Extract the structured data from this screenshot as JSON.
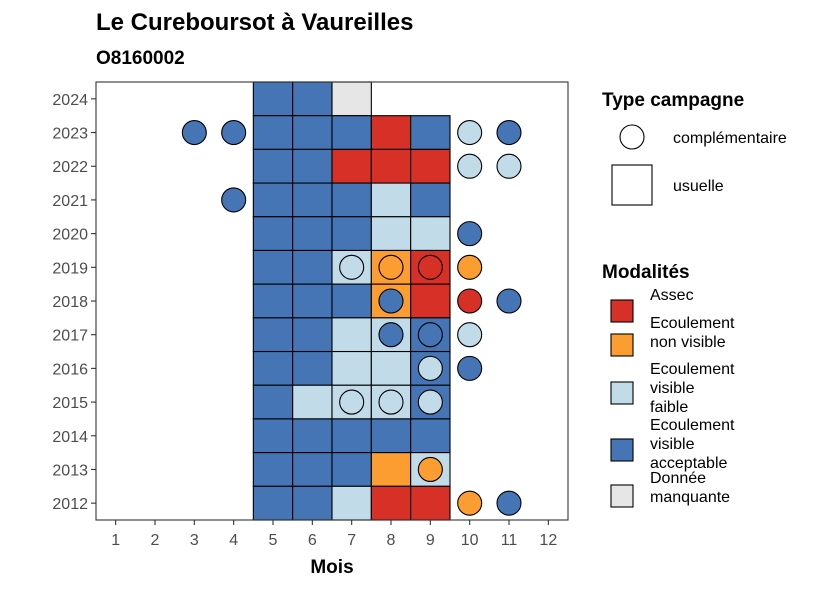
{
  "chart_data": {
    "type": "heatmap",
    "title": "Le Cureboursot à Vaureilles",
    "subtitle": "O8160002",
    "xlabel": "Mois",
    "ylabel": "",
    "x_ticks": [
      1,
      2,
      3,
      4,
      5,
      6,
      7,
      8,
      9,
      10,
      11,
      12
    ],
    "y_ticks": [
      2012,
      2013,
      2014,
      2015,
      2016,
      2017,
      2018,
      2019,
      2020,
      2021,
      2022,
      2023,
      2024
    ],
    "xlim": [
      0.5,
      12.5
    ],
    "ylim": [
      2011.5,
      2024.5
    ],
    "modalities": [
      {
        "key": "assec",
        "label_lines": [
          "Assec"
        ],
        "color": "#d73027"
      },
      {
        "key": "nonvisible",
        "label_lines": [
          "Ecoulement",
          "non visible"
        ],
        "color": "#fc9d32"
      },
      {
        "key": "faible",
        "label_lines": [
          "Ecoulement",
          "visible",
          "faible"
        ],
        "color": "#c2dbe9"
      },
      {
        "key": "acceptable",
        "label_lines": [
          "Ecoulement",
          "visible",
          "acceptable"
        ],
        "color": "#4575b4"
      },
      {
        "key": "manquante",
        "label_lines": [
          "Donnée",
          "manquante"
        ],
        "color": "#e6e6e6"
      }
    ],
    "campaign_types": [
      {
        "key": "complementaire",
        "label": "complémentaire",
        "shape": "circle"
      },
      {
        "key": "usuelle",
        "label": "usuelle",
        "shape": "square"
      }
    ],
    "legend_titles": {
      "campaign": "Type campagne",
      "modality": "Modalités"
    },
    "usuelle": [
      {
        "year": 2024,
        "month": 5,
        "mod": "acceptable"
      },
      {
        "year": 2024,
        "month": 6,
        "mod": "acceptable"
      },
      {
        "year": 2024,
        "month": 7,
        "mod": "manquante"
      },
      {
        "year": 2023,
        "month": 5,
        "mod": "acceptable"
      },
      {
        "year": 2023,
        "month": 6,
        "mod": "acceptable"
      },
      {
        "year": 2023,
        "month": 7,
        "mod": "acceptable"
      },
      {
        "year": 2023,
        "month": 8,
        "mod": "assec"
      },
      {
        "year": 2023,
        "month": 9,
        "mod": "acceptable"
      },
      {
        "year": 2022,
        "month": 5,
        "mod": "acceptable"
      },
      {
        "year": 2022,
        "month": 6,
        "mod": "acceptable"
      },
      {
        "year": 2022,
        "month": 7,
        "mod": "assec"
      },
      {
        "year": 2022,
        "month": 8,
        "mod": "assec"
      },
      {
        "year": 2022,
        "month": 9,
        "mod": "assec"
      },
      {
        "year": 2021,
        "month": 5,
        "mod": "acceptable"
      },
      {
        "year": 2021,
        "month": 6,
        "mod": "acceptable"
      },
      {
        "year": 2021,
        "month": 7,
        "mod": "acceptable"
      },
      {
        "year": 2021,
        "month": 8,
        "mod": "faible"
      },
      {
        "year": 2021,
        "month": 9,
        "mod": "acceptable"
      },
      {
        "year": 2020,
        "month": 5,
        "mod": "acceptable"
      },
      {
        "year": 2020,
        "month": 6,
        "mod": "acceptable"
      },
      {
        "year": 2020,
        "month": 7,
        "mod": "acceptable"
      },
      {
        "year": 2020,
        "month": 8,
        "mod": "faible"
      },
      {
        "year": 2020,
        "month": 9,
        "mod": "faible"
      },
      {
        "year": 2019,
        "month": 5,
        "mod": "acceptable"
      },
      {
        "year": 2019,
        "month": 6,
        "mod": "acceptable"
      },
      {
        "year": 2019,
        "month": 7,
        "mod": "faible"
      },
      {
        "year": 2019,
        "month": 8,
        "mod": "nonvisible"
      },
      {
        "year": 2019,
        "month": 9,
        "mod": "assec"
      },
      {
        "year": 2018,
        "month": 5,
        "mod": "acceptable"
      },
      {
        "year": 2018,
        "month": 6,
        "mod": "acceptable"
      },
      {
        "year": 2018,
        "month": 7,
        "mod": "acceptable"
      },
      {
        "year": 2018,
        "month": 8,
        "mod": "nonvisible"
      },
      {
        "year": 2018,
        "month": 9,
        "mod": "assec"
      },
      {
        "year": 2017,
        "month": 5,
        "mod": "acceptable"
      },
      {
        "year": 2017,
        "month": 6,
        "mod": "acceptable"
      },
      {
        "year": 2017,
        "month": 7,
        "mod": "faible"
      },
      {
        "year": 2017,
        "month": 8,
        "mod": "faible"
      },
      {
        "year": 2017,
        "month": 9,
        "mod": "acceptable"
      },
      {
        "year": 2016,
        "month": 5,
        "mod": "acceptable"
      },
      {
        "year": 2016,
        "month": 6,
        "mod": "acceptable"
      },
      {
        "year": 2016,
        "month": 7,
        "mod": "faible"
      },
      {
        "year": 2016,
        "month": 8,
        "mod": "faible"
      },
      {
        "year": 2016,
        "month": 9,
        "mod": "acceptable"
      },
      {
        "year": 2015,
        "month": 5,
        "mod": "acceptable"
      },
      {
        "year": 2015,
        "month": 6,
        "mod": "faible"
      },
      {
        "year": 2015,
        "month": 7,
        "mod": "faible"
      },
      {
        "year": 2015,
        "month": 8,
        "mod": "faible"
      },
      {
        "year": 2015,
        "month": 9,
        "mod": "acceptable"
      },
      {
        "year": 2014,
        "month": 5,
        "mod": "acceptable"
      },
      {
        "year": 2014,
        "month": 6,
        "mod": "acceptable"
      },
      {
        "year": 2014,
        "month": 7,
        "mod": "acceptable"
      },
      {
        "year": 2014,
        "month": 8,
        "mod": "acceptable"
      },
      {
        "year": 2014,
        "month": 9,
        "mod": "acceptable"
      },
      {
        "year": 2013,
        "month": 5,
        "mod": "acceptable"
      },
      {
        "year": 2013,
        "month": 6,
        "mod": "acceptable"
      },
      {
        "year": 2013,
        "month": 7,
        "mod": "acceptable"
      },
      {
        "year": 2013,
        "month": 8,
        "mod": "nonvisible"
      },
      {
        "year": 2013,
        "month": 9,
        "mod": "faible"
      },
      {
        "year": 2012,
        "month": 5,
        "mod": "acceptable"
      },
      {
        "year": 2012,
        "month": 6,
        "mod": "acceptable"
      },
      {
        "year": 2012,
        "month": 7,
        "mod": "faible"
      },
      {
        "year": 2012,
        "month": 8,
        "mod": "assec"
      },
      {
        "year": 2012,
        "month": 9,
        "mod": "assec"
      }
    ],
    "complementaire": [
      {
        "year": 2023,
        "month": 3,
        "mod": "acceptable"
      },
      {
        "year": 2023,
        "month": 4,
        "mod": "acceptable"
      },
      {
        "year": 2023,
        "month": 10,
        "mod": "faible"
      },
      {
        "year": 2023,
        "month": 11,
        "mod": "acceptable"
      },
      {
        "year": 2022,
        "month": 10,
        "mod": "faible"
      },
      {
        "year": 2022,
        "month": 11,
        "mod": "faible"
      },
      {
        "year": 2021,
        "month": 4,
        "mod": "acceptable"
      },
      {
        "year": 2020,
        "month": 10,
        "mod": "acceptable"
      },
      {
        "year": 2019,
        "month": 7,
        "mod": "faible"
      },
      {
        "year": 2019,
        "month": 8,
        "mod": "nonvisible"
      },
      {
        "year": 2019,
        "month": 9,
        "mod": "assec"
      },
      {
        "year": 2019,
        "month": 10,
        "mod": "nonvisible"
      },
      {
        "year": 2018,
        "month": 8,
        "mod": "acceptable"
      },
      {
        "year": 2018,
        "month": 10,
        "mod": "assec"
      },
      {
        "year": 2018,
        "month": 11,
        "mod": "acceptable"
      },
      {
        "year": 2017,
        "month": 8,
        "mod": "acceptable"
      },
      {
        "year": 2017,
        "month": 9,
        "mod": "acceptable"
      },
      {
        "year": 2017,
        "month": 10,
        "mod": "faible"
      },
      {
        "year": 2016,
        "month": 9,
        "mod": "faible"
      },
      {
        "year": 2016,
        "month": 10,
        "mod": "acceptable"
      },
      {
        "year": 2015,
        "month": 7,
        "mod": "faible"
      },
      {
        "year": 2015,
        "month": 8,
        "mod": "faible"
      },
      {
        "year": 2015,
        "month": 9,
        "mod": "faible"
      },
      {
        "year": 2013,
        "month": 9,
        "mod": "nonvisible"
      },
      {
        "year": 2012,
        "month": 10,
        "mod": "nonvisible"
      },
      {
        "year": 2012,
        "month": 11,
        "mod": "acceptable"
      }
    ]
  }
}
